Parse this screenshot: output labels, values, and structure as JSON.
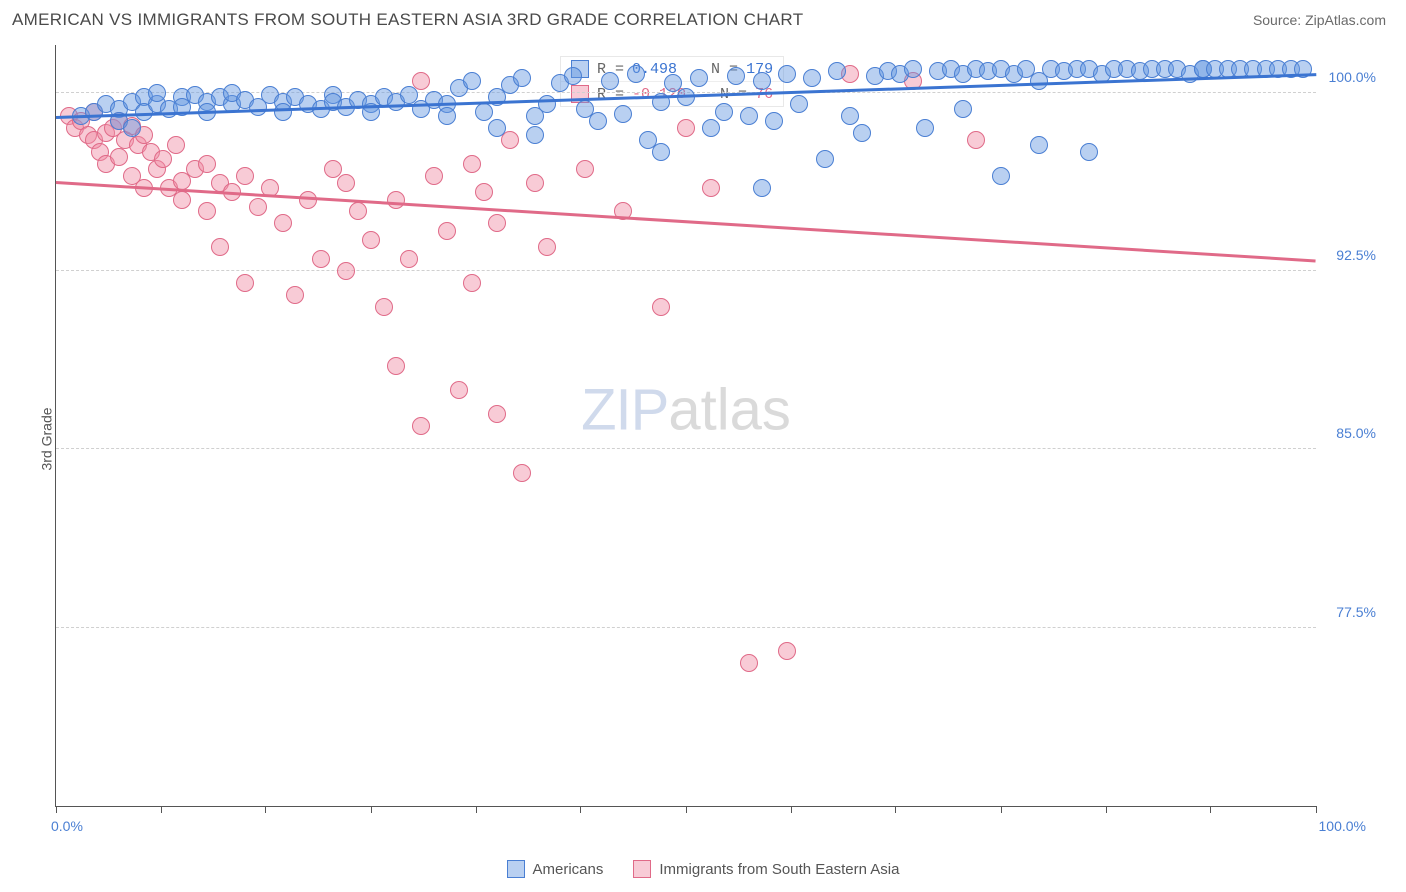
{
  "header": {
    "title": "AMERICAN VS IMMIGRANTS FROM SOUTH EASTERN ASIA 3RD GRADE CORRELATION CHART",
    "source": "Source: ZipAtlas.com"
  },
  "chart": {
    "type": "scatter",
    "ylabel": "3rd Grade",
    "xlim": [
      0,
      100
    ],
    "ylim": [
      70,
      102
    ],
    "x_start_label": "0.0%",
    "x_end_label": "100.0%",
    "y_grid": [
      {
        "value": 77.5,
        "label": "77.5%"
      },
      {
        "value": 85.0,
        "label": "85.0%"
      },
      {
        "value": 92.5,
        "label": "92.5%"
      },
      {
        "value": 100.0,
        "label": "100.0%"
      }
    ],
    "x_ticks_pct": [
      0,
      8.3,
      16.6,
      25,
      33.3,
      41.6,
      50,
      58.3,
      66.6,
      75,
      83.3,
      91.6,
      100
    ],
    "background_color": "#ffffff",
    "grid_color": "#d0d0d0",
    "series": {
      "blue": {
        "name": "Americans",
        "fill": "rgba(100,150,225,0.45)",
        "stroke": "#4a7fd3",
        "marker_r": 9,
        "trend": {
          "y_at_x0": 99.0,
          "y_at_x100": 100.8,
          "color": "#3b74d1"
        },
        "stats": {
          "R": "0.498",
          "N": "179"
        },
        "points": [
          [
            2,
            99
          ],
          [
            3,
            99.2
          ],
          [
            4,
            99.5
          ],
          [
            5,
            99.3
          ],
          [
            5,
            98.8
          ],
          [
            6,
            99.6
          ],
          [
            6,
            98.5
          ],
          [
            7,
            99.8
          ],
          [
            7,
            99.2
          ],
          [
            8,
            99.5
          ],
          [
            8,
            100
          ],
          [
            9,
            99.3
          ],
          [
            10,
            99.8
          ],
          [
            10,
            99.4
          ],
          [
            11,
            99.9
          ],
          [
            12,
            99.6
          ],
          [
            12,
            99.2
          ],
          [
            13,
            99.8
          ],
          [
            14,
            99.5
          ],
          [
            14,
            100
          ],
          [
            15,
            99.7
          ],
          [
            16,
            99.4
          ],
          [
            17,
            99.9
          ],
          [
            18,
            99.6
          ],
          [
            18,
            99.2
          ],
          [
            19,
            99.8
          ],
          [
            20,
            99.5
          ],
          [
            21,
            99.3
          ],
          [
            22,
            99.9
          ],
          [
            22,
            99.6
          ],
          [
            23,
            99.4
          ],
          [
            24,
            99.7
          ],
          [
            25,
            99.5
          ],
          [
            25,
            99.2
          ],
          [
            26,
            99.8
          ],
          [
            27,
            99.6
          ],
          [
            28,
            99.9
          ],
          [
            29,
            99.3
          ],
          [
            30,
            99.7
          ],
          [
            31,
            99.5
          ],
          [
            31,
            99.0
          ],
          [
            32,
            100.2
          ],
          [
            33,
            100.5
          ],
          [
            34,
            99.2
          ],
          [
            35,
            99.8
          ],
          [
            35,
            98.5
          ],
          [
            36,
            100.3
          ],
          [
            37,
            100.6
          ],
          [
            38,
            99.0
          ],
          [
            38,
            98.2
          ],
          [
            39,
            99.5
          ],
          [
            40,
            100.4
          ],
          [
            41,
            100.7
          ],
          [
            42,
            99.3
          ],
          [
            43,
            98.8
          ],
          [
            44,
            100.5
          ],
          [
            45,
            99.1
          ],
          [
            46,
            100.8
          ],
          [
            47,
            98.0
          ],
          [
            48,
            99.6
          ],
          [
            48,
            97.5
          ],
          [
            49,
            100.4
          ],
          [
            50,
            99.8
          ],
          [
            51,
            100.6
          ],
          [
            52,
            98.5
          ],
          [
            53,
            99.2
          ],
          [
            54,
            100.7
          ],
          [
            55,
            99.0
          ],
          [
            56,
            100.5
          ],
          [
            56,
            96.0
          ],
          [
            57,
            98.8
          ],
          [
            58,
            100.8
          ],
          [
            59,
            99.5
          ],
          [
            60,
            100.6
          ],
          [
            61,
            97.2
          ],
          [
            62,
            100.9
          ],
          [
            63,
            99.0
          ],
          [
            64,
            98.3
          ],
          [
            65,
            100.7
          ],
          [
            66,
            100.9
          ],
          [
            67,
            100.8
          ],
          [
            68,
            101.0
          ],
          [
            69,
            98.5
          ],
          [
            70,
            100.9
          ],
          [
            71,
            101.0
          ],
          [
            72,
            100.8
          ],
          [
            72,
            99.3
          ],
          [
            73,
            101.0
          ],
          [
            74,
            100.9
          ],
          [
            75,
            96.5
          ],
          [
            75,
            101.0
          ],
          [
            76,
            100.8
          ],
          [
            77,
            101.0
          ],
          [
            78,
            100.5
          ],
          [
            78,
            97.8
          ],
          [
            79,
            101.0
          ],
          [
            80,
            100.9
          ],
          [
            81,
            101.0
          ],
          [
            82,
            97.5
          ],
          [
            82,
            101.0
          ],
          [
            83,
            100.8
          ],
          [
            84,
            101.0
          ],
          [
            85,
            101.0
          ],
          [
            86,
            100.9
          ],
          [
            87,
            101.0
          ],
          [
            88,
            101.0
          ],
          [
            89,
            101.0
          ],
          [
            90,
            100.8
          ],
          [
            91,
            101.0
          ],
          [
            91,
            101.0
          ],
          [
            92,
            101.0
          ],
          [
            93,
            101.0
          ],
          [
            94,
            101.0
          ],
          [
            95,
            101.0
          ],
          [
            96,
            101.0
          ],
          [
            97,
            101.0
          ],
          [
            98,
            101.0
          ],
          [
            99,
            101.0
          ]
        ]
      },
      "pink": {
        "name": "Immigrants from South Eastern Asia",
        "fill": "rgba(240,140,165,0.45)",
        "stroke": "#e06a88",
        "marker_r": 9,
        "trend": {
          "y_at_x0": 96.3,
          "y_at_x100": 93.0,
          "color": "#e06a88"
        },
        "stats": {
          "R": "-0.120",
          "N": "76"
        },
        "points": [
          [
            1,
            99.0
          ],
          [
            1.5,
            98.5
          ],
          [
            2,
            98.8
          ],
          [
            2.5,
            98.2
          ],
          [
            3,
            99.2
          ],
          [
            3,
            98.0
          ],
          [
            3.5,
            97.5
          ],
          [
            4,
            98.3
          ],
          [
            4,
            97.0
          ],
          [
            4.5,
            98.5
          ],
          [
            5,
            98.8
          ],
          [
            5,
            97.3
          ],
          [
            5.5,
            98.0
          ],
          [
            6,
            98.6
          ],
          [
            6,
            96.5
          ],
          [
            6.5,
            97.8
          ],
          [
            7,
            98.2
          ],
          [
            7,
            96.0
          ],
          [
            7.5,
            97.5
          ],
          [
            8,
            96.8
          ],
          [
            8.5,
            97.2
          ],
          [
            9,
            96.0
          ],
          [
            9.5,
            97.8
          ],
          [
            10,
            96.3
          ],
          [
            10,
            95.5
          ],
          [
            11,
            96.8
          ],
          [
            12,
            97.0
          ],
          [
            12,
            95.0
          ],
          [
            13,
            96.2
          ],
          [
            13,
            93.5
          ],
          [
            14,
            95.8
          ],
          [
            15,
            96.5
          ],
          [
            15,
            92.0
          ],
          [
            16,
            95.2
          ],
          [
            17,
            96.0
          ],
          [
            18,
            94.5
          ],
          [
            19,
            91.5
          ],
          [
            20,
            95.5
          ],
          [
            21,
            93.0
          ],
          [
            22,
            96.8
          ],
          [
            23,
            92.5
          ],
          [
            23,
            96.2
          ],
          [
            24,
            95.0
          ],
          [
            25,
            93.8
          ],
          [
            26,
            91.0
          ],
          [
            27,
            95.5
          ],
          [
            27,
            88.5
          ],
          [
            28,
            93.0
          ],
          [
            29,
            86.0
          ],
          [
            29,
            100.5
          ],
          [
            30,
            96.5
          ],
          [
            31,
            94.2
          ],
          [
            32,
            87.5
          ],
          [
            33,
            97.0
          ],
          [
            33,
            92.0
          ],
          [
            34,
            95.8
          ],
          [
            35,
            94.5
          ],
          [
            35,
            86.5
          ],
          [
            36,
            98.0
          ],
          [
            37,
            84.0
          ],
          [
            38,
            96.2
          ],
          [
            39,
            93.5
          ],
          [
            42,
            96.8
          ],
          [
            45,
            95.0
          ],
          [
            48,
            91.0
          ],
          [
            50,
            98.5
          ],
          [
            52,
            96.0
          ],
          [
            55,
            76.0
          ],
          [
            58,
            76.5
          ],
          [
            63,
            100.8
          ],
          [
            68,
            100.5
          ],
          [
            73,
            98.0
          ]
        ]
      }
    },
    "legend_stats_labels": {
      "R": "R =",
      "N": "N ="
    },
    "watermark": {
      "part1": "ZIP",
      "part2": "atlas"
    }
  },
  "bottom_legend": {
    "item1": "Americans",
    "item2": "Immigrants from South Eastern Asia"
  }
}
